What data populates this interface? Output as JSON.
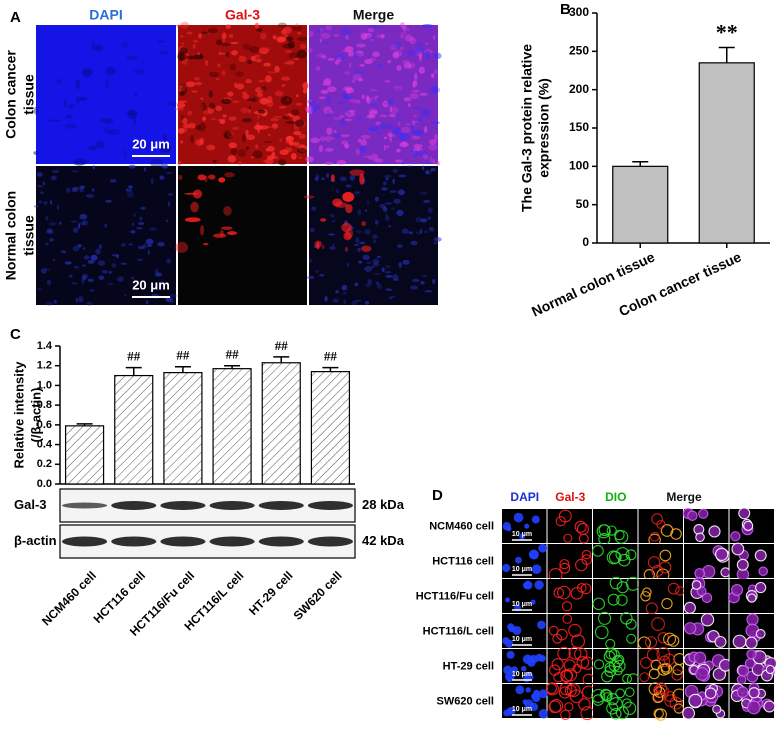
{
  "panel_a": {
    "label": "A",
    "columns": [
      "DAPI",
      "Gal-3",
      "Merge"
    ],
    "rows": [
      [
        "Colon cancer",
        "tissue"
      ],
      [
        "Normal colon",
        "tissue"
      ]
    ],
    "scale_bar": "20 μm"
  },
  "chart_data": [
    {
      "type": "bar",
      "panel_label": "B",
      "ylabel": [
        "The Gal-3 protein relative",
        "expression (%)"
      ],
      "categories": [
        "Normal colon tissue",
        "Colon cancer tissue"
      ],
      "values": [
        100,
        235
      ],
      "errors": [
        6,
        20
      ],
      "annotations": [
        null,
        "**"
      ],
      "color": "#c0c0c0",
      "ylim": [
        0,
        300
      ],
      "yticks": [
        0,
        50,
        100,
        150,
        200,
        250,
        300
      ]
    },
    {
      "type": "bar",
      "panel_label": "C",
      "ylabel": [
        "Relative intensity",
        "(/β-actin)"
      ],
      "categories": [
        "NCM460 cell",
        "HCT116 cell",
        "HCT116/Fu cell",
        "HCT116/L cell",
        "HT-29 cell",
        "SW620 cell"
      ],
      "values": [
        0.59,
        1.1,
        1.13,
        1.17,
        1.23,
        1.14
      ],
      "errors": [
        0.02,
        0.08,
        0.06,
        0.03,
        0.06,
        0.04
      ],
      "annotations": [
        null,
        "##",
        "##",
        "##",
        "##",
        "##"
      ],
      "hatch": true,
      "ylim": [
        0,
        1.4
      ],
      "yticks": [
        {
          "value": 0,
          "label": "0.0"
        },
        0.2,
        0.4,
        0.6,
        0.8,
        {
          "value": 1,
          "label": "1.0"
        },
        1.2,
        1.4
      ],
      "blot": [
        {
          "name": "Gal-3",
          "size": "28 kDa"
        },
        {
          "name": "β-actin",
          "size": "42 kDa"
        }
      ]
    }
  ],
  "panel_d": {
    "label": "D",
    "columns": [
      "DAPI",
      "Gal-3",
      "DIO",
      "Merge"
    ],
    "rows": [
      "NCM460 cell",
      "HCT116 cell",
      "HCT116/Fu cell",
      "HCT116/L cell",
      "HT-29 cell",
      "SW620 cell"
    ],
    "scale_bar": "10 μm"
  }
}
